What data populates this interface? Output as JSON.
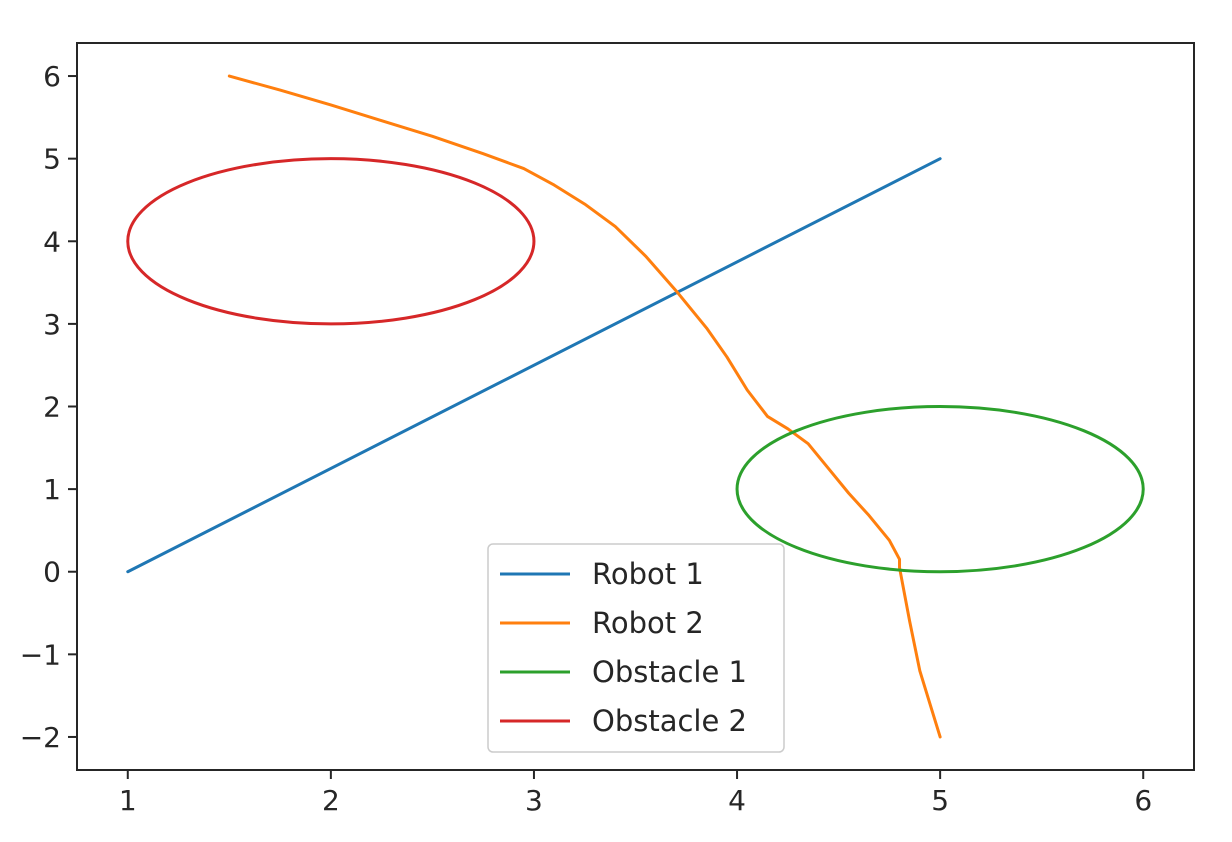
{
  "chart_data": {
    "type": "line",
    "title": "",
    "xlabel": "",
    "ylabel": "",
    "xlim": [
      0.75,
      6.25
    ],
    "ylim": [
      -2.4,
      6.4
    ],
    "grid": false,
    "legend_position": "bottom-center",
    "x_ticks": [
      1,
      2,
      3,
      4,
      5,
      6
    ],
    "y_ticks": [
      -2,
      -1,
      0,
      1,
      2,
      3,
      4,
      5,
      6
    ],
    "series": [
      {
        "name": "Robot 1",
        "color": "#1f77b4",
        "kind": "polyline",
        "points": [
          [
            1,
            0
          ],
          [
            5,
            5
          ]
        ]
      },
      {
        "name": "Robot 2",
        "color": "#ff7f0e",
        "kind": "polyline",
        "points": [
          [
            1.5,
            6.0
          ],
          [
            1.75,
            5.83
          ],
          [
            2.0,
            5.65
          ],
          [
            2.25,
            5.46
          ],
          [
            2.5,
            5.27
          ],
          [
            2.75,
            5.06
          ],
          [
            2.95,
            4.88
          ],
          [
            3.1,
            4.68
          ],
          [
            3.25,
            4.45
          ],
          [
            3.4,
            4.18
          ],
          [
            3.55,
            3.82
          ],
          [
            3.7,
            3.4
          ],
          [
            3.85,
            2.95
          ],
          [
            3.95,
            2.6
          ],
          [
            4.05,
            2.2
          ],
          [
            4.15,
            1.88
          ],
          [
            4.25,
            1.73
          ],
          [
            4.35,
            1.55
          ],
          [
            4.45,
            1.25
          ],
          [
            4.55,
            0.95
          ],
          [
            4.65,
            0.68
          ],
          [
            4.75,
            0.38
          ],
          [
            4.8,
            0.15
          ],
          [
            4.8,
            0.05
          ],
          [
            4.85,
            -0.6
          ],
          [
            4.9,
            -1.2
          ],
          [
            4.95,
            -1.6
          ],
          [
            5.0,
            -2.0
          ]
        ]
      },
      {
        "name": "Obstacle 1",
        "color": "#2ca02c",
        "kind": "ellipse",
        "center": [
          5,
          1
        ],
        "radius_x": 1,
        "radius_y": 1
      },
      {
        "name": "Obstacle 2",
        "color": "#d62728",
        "kind": "ellipse",
        "center": [
          2,
          4
        ],
        "radius_x": 1,
        "radius_y": 1
      }
    ]
  }
}
